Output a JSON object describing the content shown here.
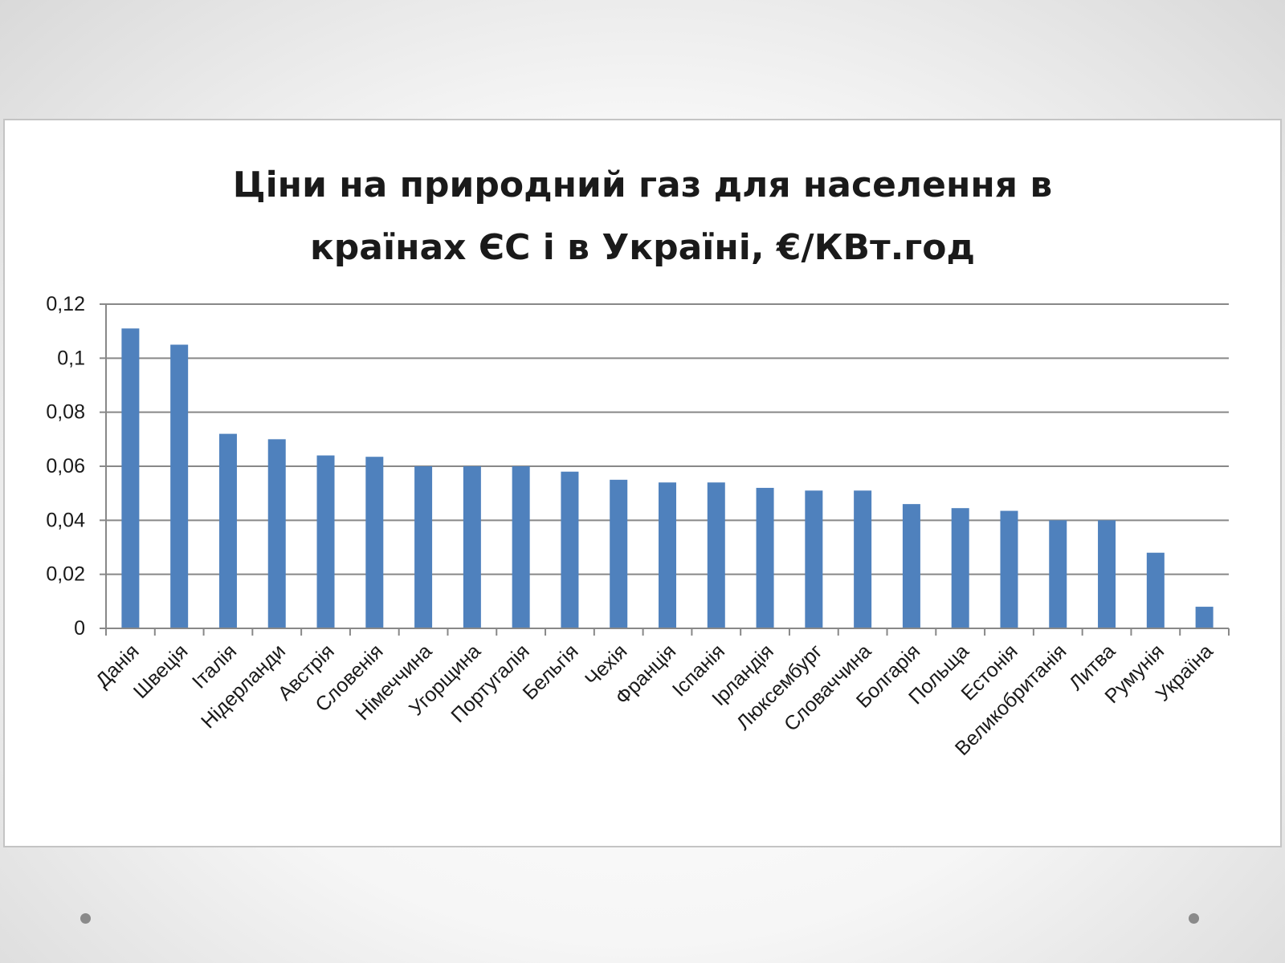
{
  "slide": {
    "bullet_color": "#8a8a8a"
  },
  "chart_data": {
    "type": "bar",
    "title_lines": [
      "Ціни на природний газ для населення в",
      "країнах ЄС і в Україні, €/КВт.год"
    ],
    "title": "Ціни на природний газ для населення в країнах ЄС і в Україні, €/КВт.год",
    "xlabel": "",
    "ylabel": "",
    "categories": [
      "Данія",
      "Швеція",
      "Італія",
      "Нідерланди",
      "Австрія",
      "Словенія",
      "Німеччина",
      "Угорщина",
      "Португалія",
      "Бельгія",
      "Чехія",
      "Франція",
      "Іспанія",
      "Ірландія",
      "Люксембург",
      "Словаччина",
      "Болгарія",
      "Польща",
      "Естонія",
      "Великобританія",
      "Литва",
      "Румунія",
      "Україна"
    ],
    "values": [
      0.111,
      0.105,
      0.072,
      0.07,
      0.064,
      0.0635,
      0.06,
      0.06,
      0.06,
      0.058,
      0.055,
      0.054,
      0.054,
      0.052,
      0.051,
      0.051,
      0.046,
      0.0445,
      0.0435,
      0.04,
      0.04,
      0.028,
      0.008
    ],
    "ylim": [
      0,
      0.12
    ],
    "yticks": [
      0,
      0.02,
      0.04,
      0.06,
      0.08,
      0.1,
      0.12
    ],
    "ytick_labels": [
      "0",
      "0,02",
      "0,04",
      "0,06",
      "0,08",
      "0,1",
      "0,12"
    ],
    "grid": true,
    "legend": "none",
    "bar_color": "#4f81bd",
    "grid_color": "#888888"
  }
}
